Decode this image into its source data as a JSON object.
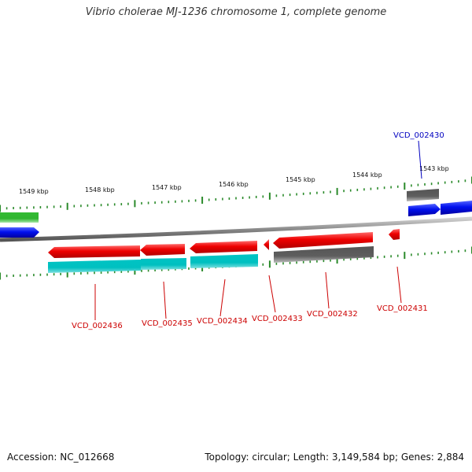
{
  "title": "Vibrio cholerae MJ-1236 chromosome 1, complete genome",
  "footer": {
    "accession": "Accession: NC_012668",
    "summary": "Topology: circular; Length: 3,149,584 bp; Genes: 2,884"
  },
  "ruler_labels": [
    "1549 kbp",
    "1548 kbp",
    "1547 kbp",
    "1546 kbp",
    "1545 kbp",
    "1544 kbp",
    "1543 kbp"
  ],
  "genes": [
    {
      "id": "VCD_002430",
      "color": "#0000c0"
    },
    {
      "id": "VCD_002431",
      "color": "#cc0000"
    },
    {
      "id": "VCD_002432",
      "color": "#cc0000"
    },
    {
      "id": "VCD_002433",
      "color": "#cc0000"
    },
    {
      "id": "VCD_002434",
      "color": "#cc0000"
    },
    {
      "id": "VCD_002435",
      "color": "#cc0000"
    },
    {
      "id": "VCD_002436",
      "color": "#cc0000"
    }
  ],
  "colors": {
    "red": "#ee0000",
    "cyan": "#00c4c4",
    "blue": "#0010ee",
    "green": "#33bb33",
    "gray": "#666666",
    "tick": "#2a8a2a"
  }
}
